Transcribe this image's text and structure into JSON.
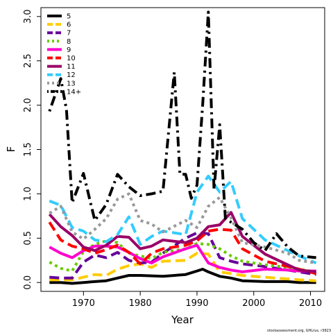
{
  "chart_data": {
    "type": "line",
    "xlabel": "Year",
    "ylabel": "F",
    "xlim": [
      1962.5,
      2012.5
    ],
    "ylim": [
      -0.1,
      3.1
    ],
    "xticks": [
      "1970",
      "1980",
      "1990",
      "2000",
      "2010"
    ],
    "yticks": [
      "0.0",
      "0.5",
      "1.0",
      "1.5",
      "2.0",
      "2.5",
      "3.0"
    ],
    "credit": "stockassessment.org, GHLrus, r3823",
    "legend_position": "top-left",
    "series": [
      {
        "name": "5",
        "color": "#000000",
        "dash": "solid",
        "points": [
          [
            1964,
            0.0
          ],
          [
            1966,
            0.0
          ],
          [
            1968,
            -0.01
          ],
          [
            1970,
            0.0
          ],
          [
            1972,
            0.01
          ],
          [
            1974,
            0.02
          ],
          [
            1976,
            0.05
          ],
          [
            1978,
            0.08
          ],
          [
            1980,
            0.08
          ],
          [
            1984,
            0.07
          ],
          [
            1988,
            0.09
          ],
          [
            1990,
            0.13
          ],
          [
            1991,
            0.15
          ],
          [
            1992,
            0.12
          ],
          [
            1994,
            0.07
          ],
          [
            1996,
            0.05
          ],
          [
            1998,
            0.02
          ],
          [
            2002,
            0.01
          ],
          [
            2006,
            0.01
          ],
          [
            2008,
            0.0
          ],
          [
            2011,
            0.0
          ]
        ]
      },
      {
        "name": "6",
        "color": "#FFCC00",
        "dash": "dash",
        "points": [
          [
            1964,
            0.03
          ],
          [
            1966,
            0.03
          ],
          [
            1968,
            0.03
          ],
          [
            1970,
            0.06
          ],
          [
            1972,
            0.09
          ],
          [
            1974,
            0.08
          ],
          [
            1976,
            0.15
          ],
          [
            1978,
            0.19
          ],
          [
            1980,
            0.21
          ],
          [
            1982,
            0.17
          ],
          [
            1984,
            0.24
          ],
          [
            1988,
            0.25
          ],
          [
            1990,
            0.33
          ],
          [
            1992,
            0.32
          ],
          [
            1994,
            0.12
          ],
          [
            1996,
            0.1
          ],
          [
            1998,
            0.08
          ],
          [
            2002,
            0.06
          ],
          [
            2006,
            0.04
          ],
          [
            2008,
            0.03
          ],
          [
            2011,
            0.02
          ]
        ]
      },
      {
        "name": "7",
        "color": "#660099",
        "dash": "dash",
        "points": [
          [
            1964,
            0.06
          ],
          [
            1966,
            0.05
          ],
          [
            1968,
            0.05
          ],
          [
            1970,
            0.23
          ],
          [
            1972,
            0.31
          ],
          [
            1974,
            0.28
          ],
          [
            1976,
            0.34
          ],
          [
            1978,
            0.25
          ],
          [
            1980,
            0.22
          ],
          [
            1982,
            0.23
          ],
          [
            1984,
            0.33
          ],
          [
            1988,
            0.5
          ],
          [
            1990,
            0.56
          ],
          [
            1992,
            0.55
          ],
          [
            1994,
            0.28
          ],
          [
            1996,
            0.24
          ],
          [
            1998,
            0.21
          ],
          [
            2002,
            0.18
          ],
          [
            2006,
            0.14
          ],
          [
            2008,
            0.12
          ],
          [
            2011,
            0.09
          ]
        ]
      },
      {
        "name": "8",
        "color": "#66CC00",
        "dash": "dotted",
        "points": [
          [
            1964,
            0.23
          ],
          [
            1966,
            0.16
          ],
          [
            1968,
            0.13
          ],
          [
            1970,
            0.35
          ],
          [
            1972,
            0.43
          ],
          [
            1974,
            0.47
          ],
          [
            1976,
            0.45
          ],
          [
            1978,
            0.33
          ],
          [
            1980,
            0.3
          ],
          [
            1982,
            0.27
          ],
          [
            1984,
            0.34
          ],
          [
            1988,
            0.38
          ],
          [
            1990,
            0.44
          ],
          [
            1992,
            0.43
          ],
          [
            1994,
            0.38
          ],
          [
            1996,
            0.3
          ],
          [
            1998,
            0.24
          ],
          [
            2002,
            0.2
          ],
          [
            2006,
            0.17
          ],
          [
            2008,
            0.15
          ],
          [
            2011,
            0.12
          ]
        ]
      },
      {
        "name": "9",
        "color": "#FF00CC",
        "dash": "solid",
        "points": [
          [
            1964,
            0.4
          ],
          [
            1966,
            0.33
          ],
          [
            1968,
            0.28
          ],
          [
            1970,
            0.36
          ],
          [
            1972,
            0.41
          ],
          [
            1974,
            0.41
          ],
          [
            1976,
            0.4
          ],
          [
            1978,
            0.34
          ],
          [
            1980,
            0.27
          ],
          [
            1982,
            0.22
          ],
          [
            1984,
            0.29
          ],
          [
            1988,
            0.38
          ],
          [
            1990,
            0.42
          ],
          [
            1992,
            0.22
          ],
          [
            1994,
            0.17
          ],
          [
            1996,
            0.14
          ],
          [
            1998,
            0.12
          ],
          [
            2002,
            0.15
          ],
          [
            2006,
            0.14
          ],
          [
            2008,
            0.13
          ],
          [
            2011,
            0.13
          ]
        ]
      },
      {
        "name": "10",
        "color": "#FF0000",
        "dash": "dash",
        "points": [
          [
            1964,
            0.68
          ],
          [
            1966,
            0.48
          ],
          [
            1968,
            0.41
          ],
          [
            1970,
            0.38
          ],
          [
            1972,
            0.33
          ],
          [
            1974,
            0.37
          ],
          [
            1976,
            0.42
          ],
          [
            1978,
            0.34
          ],
          [
            1980,
            0.21
          ],
          [
            1982,
            0.33
          ],
          [
            1984,
            0.38
          ],
          [
            1988,
            0.42
          ],
          [
            1990,
            0.47
          ],
          [
            1992,
            0.58
          ],
          [
            1994,
            0.6
          ],
          [
            1996,
            0.59
          ],
          [
            1998,
            0.38
          ],
          [
            2002,
            0.24
          ],
          [
            2006,
            0.18
          ],
          [
            2008,
            0.15
          ],
          [
            2011,
            0.1
          ]
        ]
      },
      {
        "name": "11",
        "color": "#990066",
        "dash": "solid",
        "points": [
          [
            1964,
            0.77
          ],
          [
            1966,
            0.63
          ],
          [
            1968,
            0.53
          ],
          [
            1970,
            0.4
          ],
          [
            1972,
            0.36
          ],
          [
            1974,
            0.42
          ],
          [
            1976,
            0.52
          ],
          [
            1978,
            0.51
          ],
          [
            1980,
            0.38
          ],
          [
            1982,
            0.41
          ],
          [
            1984,
            0.48
          ],
          [
            1988,
            0.45
          ],
          [
            1990,
            0.5
          ],
          [
            1992,
            0.63
          ],
          [
            1994,
            0.65
          ],
          [
            1996,
            0.79
          ],
          [
            1998,
            0.52
          ],
          [
            2002,
            0.32
          ],
          [
            2006,
            0.2
          ],
          [
            2008,
            0.14
          ],
          [
            2011,
            0.12
          ]
        ]
      },
      {
        "name": "12",
        "color": "#33CCFF",
        "dash": "dash",
        "points": [
          [
            1964,
            0.92
          ],
          [
            1966,
            0.87
          ],
          [
            1968,
            0.62
          ],
          [
            1970,
            0.58
          ],
          [
            1972,
            0.48
          ],
          [
            1974,
            0.46
          ],
          [
            1976,
            0.54
          ],
          [
            1978,
            0.74
          ],
          [
            1980,
            0.43
          ],
          [
            1982,
            0.52
          ],
          [
            1984,
            0.58
          ],
          [
            1988,
            0.54
          ],
          [
            1990,
            1.02
          ],
          [
            1992,
            1.2
          ],
          [
            1994,
            1.02
          ],
          [
            1996,
            1.14
          ],
          [
            1998,
            0.72
          ],
          [
            2002,
            0.48
          ],
          [
            2006,
            0.36
          ],
          [
            2008,
            0.3
          ],
          [
            2011,
            0.22
          ]
        ]
      },
      {
        "name": "13",
        "color": "#999999",
        "dash": "dotted",
        "points": [
          [
            1964,
            0.78
          ],
          [
            1966,
            0.86
          ],
          [
            1968,
            0.57
          ],
          [
            1970,
            0.49
          ],
          [
            1972,
            0.6
          ],
          [
            1974,
            0.72
          ],
          [
            1976,
            0.94
          ],
          [
            1978,
            1.0
          ],
          [
            1980,
            0.7
          ],
          [
            1982,
            0.66
          ],
          [
            1984,
            0.57
          ],
          [
            1988,
            0.7
          ],
          [
            1990,
            0.62
          ],
          [
            1992,
            0.86
          ],
          [
            1994,
            0.96
          ],
          [
            1996,
            0.73
          ],
          [
            1998,
            0.45
          ],
          [
            2002,
            0.4
          ],
          [
            2006,
            0.33
          ],
          [
            2008,
            0.25
          ],
          [
            2011,
            0.22
          ]
        ]
      },
      {
        "name": "14+",
        "color": "#000000",
        "dash": "dashdot",
        "points": [
          [
            1964,
            1.93
          ],
          [
            1966,
            2.3
          ],
          [
            1967,
            1.95
          ],
          [
            1968,
            0.9
          ],
          [
            1970,
            1.23
          ],
          [
            1972,
            0.7
          ],
          [
            1974,
            0.88
          ],
          [
            1976,
            1.22
          ],
          [
            1978,
            1.08
          ],
          [
            1980,
            0.98
          ],
          [
            1982,
            1.0
          ],
          [
            1984,
            1.03
          ],
          [
            1986,
            2.37
          ],
          [
            1987,
            1.22
          ],
          [
            1988,
            1.22
          ],
          [
            1989,
            0.95
          ],
          [
            1990,
            1.1
          ],
          [
            1991,
            2.0
          ],
          [
            1992,
            3.05
          ],
          [
            1993,
            1.05
          ],
          [
            1994,
            1.78
          ],
          [
            1995,
            0.72
          ],
          [
            1998,
            0.6
          ],
          [
            2000,
            0.45
          ],
          [
            2002,
            0.36
          ],
          [
            2004,
            0.55
          ],
          [
            2006,
            0.4
          ],
          [
            2008,
            0.3
          ],
          [
            2011,
            0.28
          ]
        ]
      }
    ]
  }
}
